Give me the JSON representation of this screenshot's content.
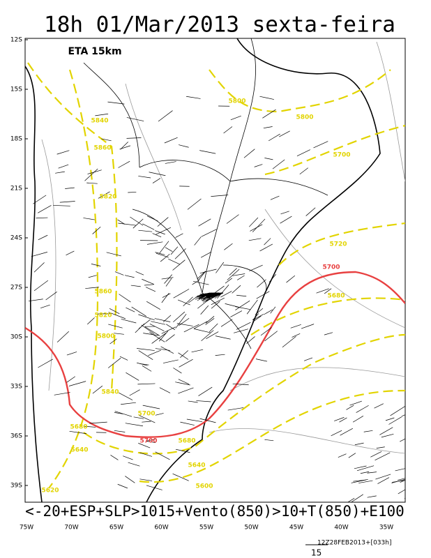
{
  "header": {
    "title": "18h 01/Mar/2013 sexta-feira",
    "model": "ETA 15km"
  },
  "map": {
    "lat_labels": [
      "12S",
      "15S",
      "18S",
      "21S",
      "24S",
      "27S",
      "30S",
      "33S",
      "36S",
      "39S"
    ],
    "lon_labels": [
      "75W",
      "70W",
      "65W",
      "60W",
      "55W",
      "50W",
      "45W",
      "40W",
      "35W"
    ],
    "contour_labels": [
      "5800",
      "5800",
      "5840",
      "5860",
      "5700",
      "5820",
      "5720",
      "5680",
      "5860",
      "5820",
      "5800",
      "5840",
      "5700",
      "5680",
      "5640",
      "5680",
      "5640",
      "5600",
      "5620"
    ],
    "highlight_label": "5700"
  },
  "footer": {
    "caption": "<-20+ESP+SLP>1015+Vento(850)>10+T(850)+E100",
    "run": "12Z28FEB2013+[033h]",
    "vector_scale": "15"
  }
}
